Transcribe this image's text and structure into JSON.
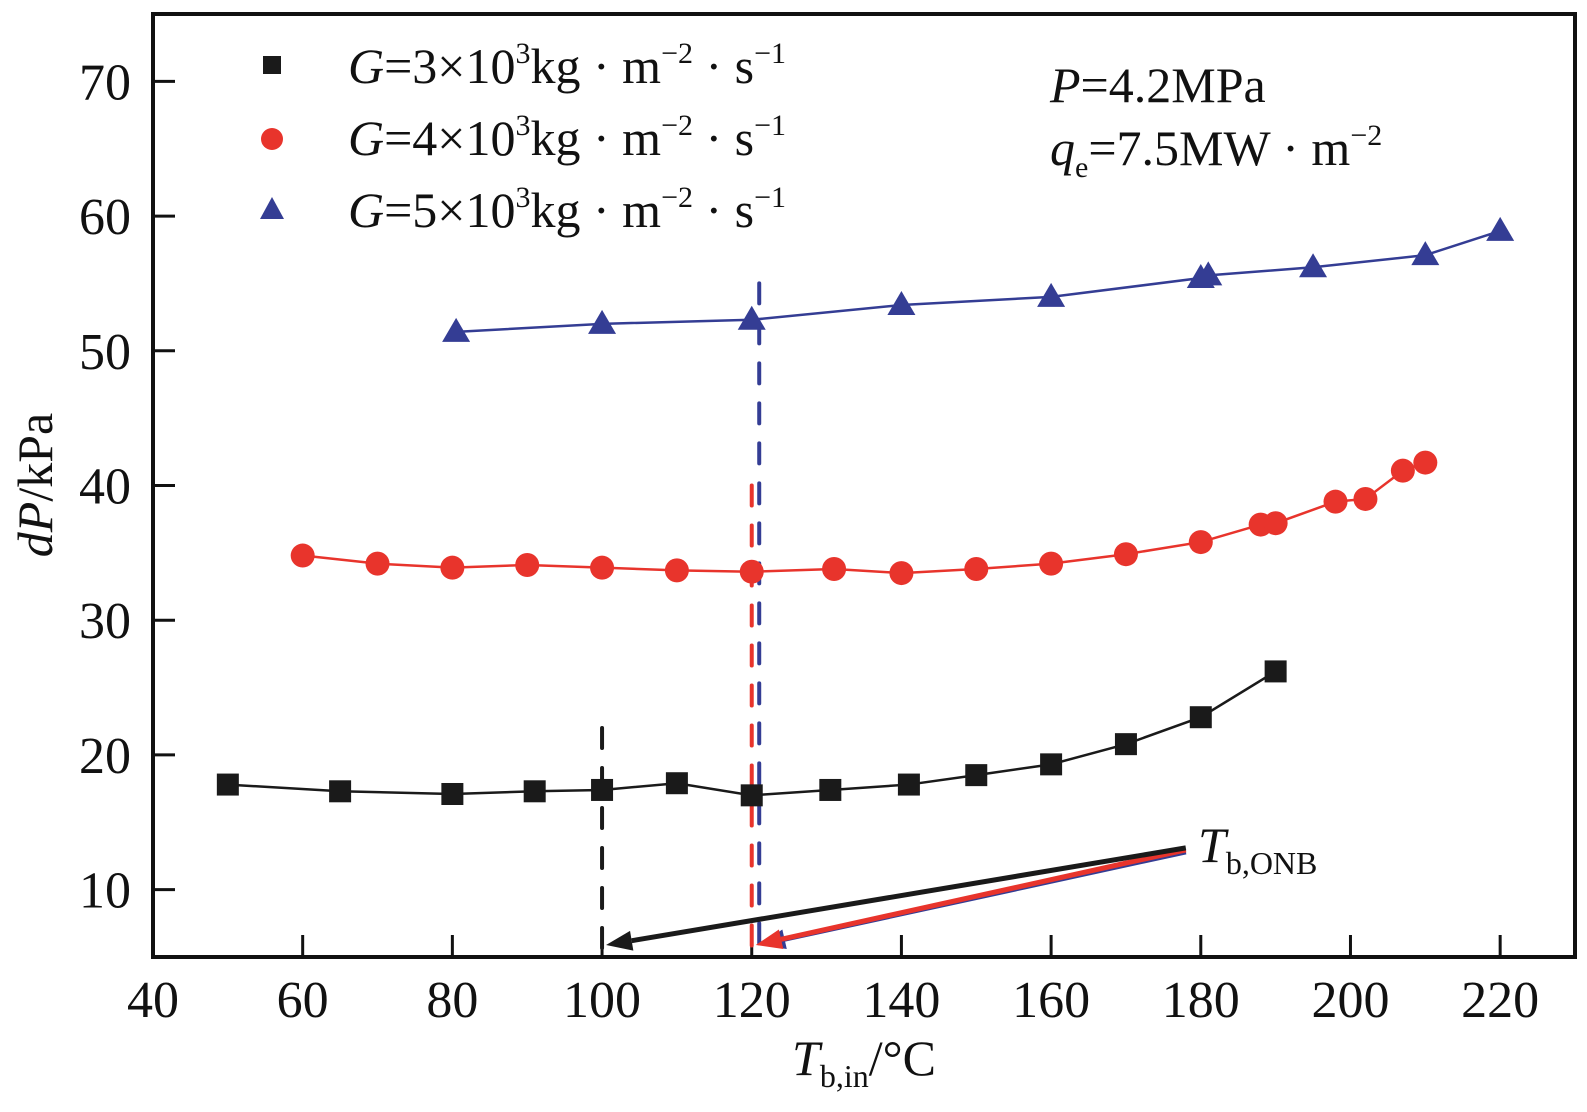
{
  "chart_data": {
    "type": "line",
    "title": "",
    "xlabel": {
      "main": "T",
      "sub": "b,in",
      "unit": "/°C"
    },
    "ylabel": {
      "main": "dP",
      "unit": "/kPa"
    },
    "xlim": [
      40,
      230
    ],
    "ylim": [
      5,
      75
    ],
    "xticks": [
      40,
      60,
      80,
      100,
      120,
      140,
      160,
      180,
      200,
      220
    ],
    "yticks": [
      10,
      20,
      30,
      40,
      50,
      60,
      70
    ],
    "xtick_labels": [
      "40",
      "60",
      "80",
      "100",
      "120",
      "140",
      "160",
      "180",
      "200",
      "220"
    ],
    "ytick_labels": [
      "10",
      "20",
      "30",
      "40",
      "50",
      "60",
      "70"
    ],
    "grid": false,
    "legend_position": "top-left",
    "series": [
      {
        "name": "G=3×10³kg · m⁻² · s⁻¹",
        "legend": {
          "prefix": "G",
          "mid": "=3×10",
          "exp": "3",
          "unit1": "kg · m",
          "exp2": "−2",
          "unit2": " · s",
          "exp3": "−1"
        },
        "marker": "square",
        "color": "#1a1a1a",
        "x": [
          50,
          65,
          80,
          91,
          100,
          110,
          120,
          130.5,
          141,
          150,
          160,
          170,
          180,
          190
        ],
        "y": [
          17.8,
          17.3,
          17.1,
          17.3,
          17.4,
          17.9,
          17.0,
          17.4,
          17.8,
          18.5,
          19.3,
          20.8,
          22.8,
          26.2
        ]
      },
      {
        "name": "G=4×10³kg · m⁻² · s⁻¹",
        "legend": {
          "prefix": "G",
          "mid": "=4×10",
          "exp": "3",
          "unit1": "kg · m",
          "exp2": "−2",
          "unit2": " · s",
          "exp3": "−1"
        },
        "marker": "circle",
        "color": "#e8342c",
        "x": [
          60,
          70,
          80,
          90,
          100,
          110,
          120,
          131,
          140,
          150,
          160,
          170,
          180,
          188,
          190,
          198,
          202,
          207,
          210
        ],
        "y": [
          34.8,
          34.2,
          33.9,
          34.1,
          33.9,
          33.7,
          33.6,
          33.8,
          33.5,
          33.8,
          34.2,
          34.9,
          35.8,
          37.1,
          37.2,
          38.8,
          39.0,
          41.1,
          41.7
        ]
      },
      {
        "name": "G=5×10³kg · m⁻² · s⁻¹",
        "legend": {
          "prefix": "G",
          "mid": "=5×10",
          "exp": "3",
          "unit1": "kg · m",
          "exp2": "−2",
          "unit2": " · s",
          "exp3": "−1"
        },
        "marker": "triangle",
        "color": "#343d94",
        "x": [
          80.5,
          100,
          120,
          140,
          160,
          180,
          181,
          195,
          210,
          220
        ],
        "y": [
          51.4,
          52.0,
          52.3,
          53.4,
          54.0,
          55.4,
          55.6,
          56.2,
          57.1,
          58.9
        ]
      }
    ],
    "onb_lines": [
      {
        "series": 0,
        "x": 100,
        "y_top": 22,
        "color": "#1a1a1a"
      },
      {
        "series": 1,
        "x": 120,
        "y_top": 40,
        "color": "#e8342c"
      },
      {
        "series": 2,
        "x": 121,
        "y_top": 55,
        "color": "#343d94"
      }
    ],
    "annotations": [
      {
        "text_main": "T",
        "text_sub": "b,ONB",
        "x": 182,
        "y": 12.6,
        "arrow_from": [
          178,
          13.1
        ]
      },
      {
        "text_main": "P",
        "text_rest": "=4.2MPa",
        "position": "top-right"
      },
      {
        "text_main": "q",
        "text_sub": "e",
        "text_rest": "=7.5MW · m",
        "text_exp": "−2",
        "position": "top-right"
      }
    ]
  }
}
